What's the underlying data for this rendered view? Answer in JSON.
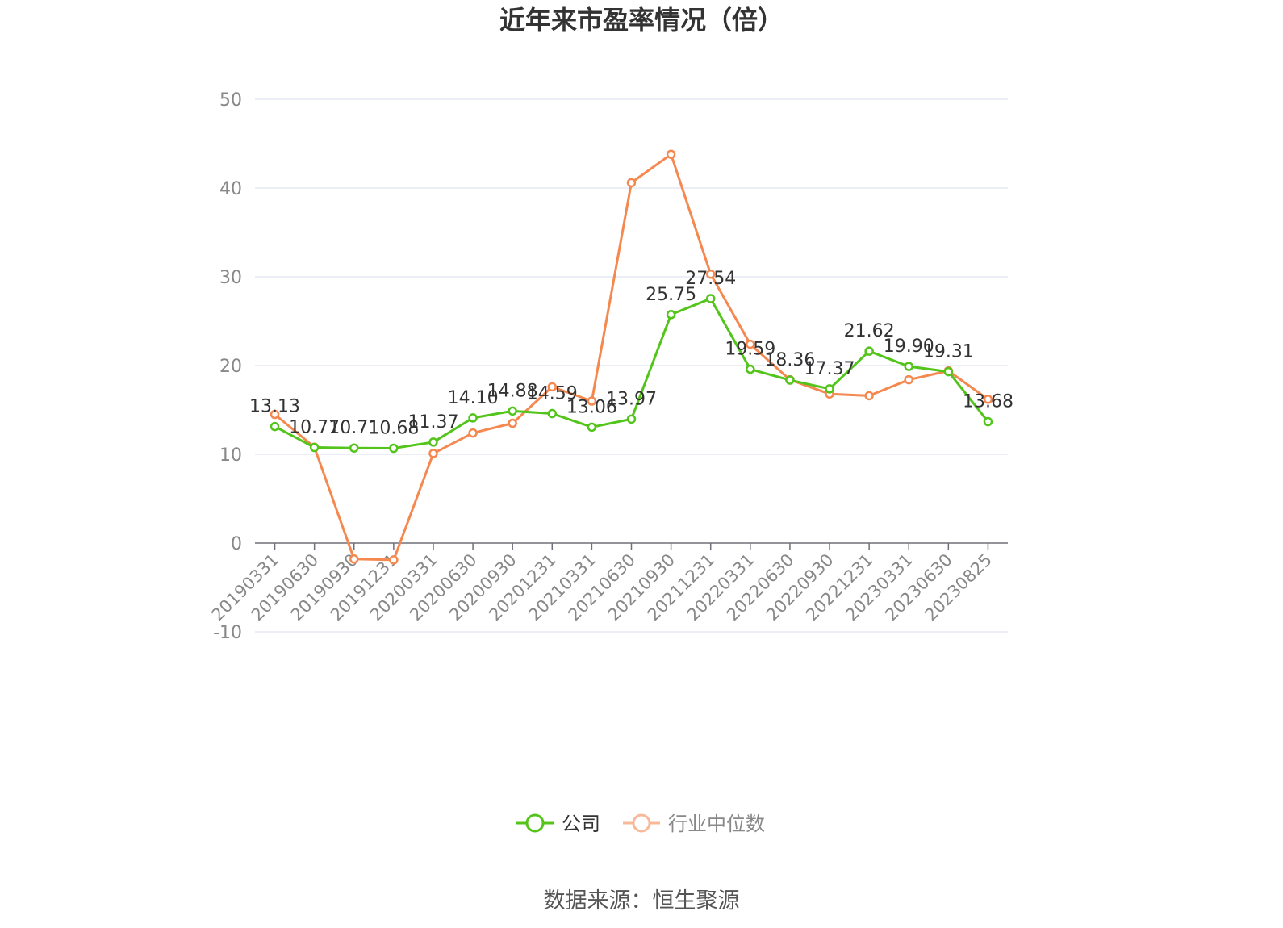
{
  "chart_data": {
    "type": "line",
    "title": "近年来市盈率情况（倍）",
    "source": "数据来源：恒生聚源",
    "categories": [
      "20190331",
      "20190630",
      "20190930",
      "20191231",
      "20200331",
      "20200630",
      "20200930",
      "20201231",
      "20210331",
      "20210630",
      "20210930",
      "20211231",
      "20220331",
      "20220630",
      "20220930",
      "20221231",
      "20230331",
      "20230630",
      "20230825"
    ],
    "ylim": [
      -10,
      50
    ],
    "yticks": [
      50,
      40,
      30,
      20,
      10,
      0,
      -10
    ],
    "grid": true,
    "legend_position": "bottom",
    "series": [
      {
        "name": "公司",
        "color": "#52c41a",
        "values": [
          13.13,
          10.77,
          10.71,
          10.68,
          11.37,
          14.1,
          14.88,
          14.59,
          13.06,
          13.97,
          25.75,
          27.54,
          19.59,
          18.36,
          17.37,
          21.62,
          19.9,
          19.31,
          13.68
        ],
        "labels": [
          "13.13",
          "10.77",
          "10.71",
          "10.68",
          "11.37",
          "14.10",
          "14.88",
          "14.59",
          "13.06",
          "13.97",
          "25.75",
          "27.54",
          "19.59",
          "18.36",
          "17.37",
          "21.62",
          "19.90",
          "19.31",
          "13.68"
        ]
      },
      {
        "name": "行业中位数",
        "color": "#f5884f",
        "values": [
          14.5,
          10.8,
          -1.8,
          -1.9,
          10.1,
          12.4,
          13.5,
          17.6,
          16.0,
          40.6,
          43.8,
          30.3,
          22.4,
          18.4,
          16.8,
          16.6,
          18.4,
          19.4,
          16.2
        ]
      }
    ]
  }
}
